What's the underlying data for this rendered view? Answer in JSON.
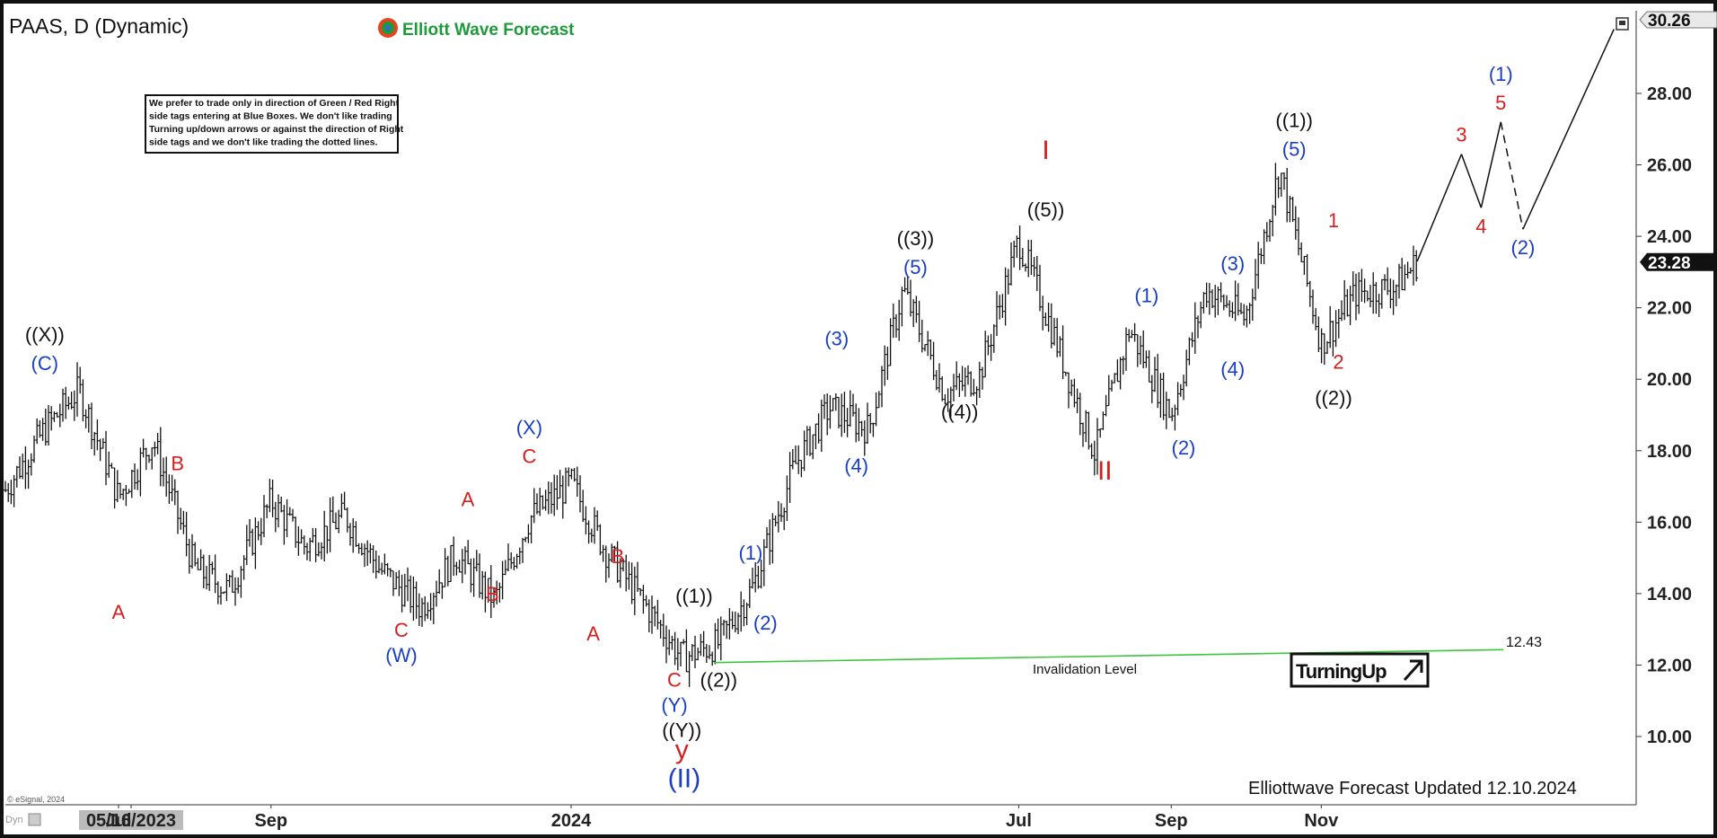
{
  "header": {
    "symbol": "PAAS, D (Dynamic)",
    "brand": "Elliott Wave Forecast",
    "brand_color": "#1e9a3a"
  },
  "disclaimer": "We prefer to trade only in direction of Green / Red Right side tags entering at Blue Boxes. We don't like trading Turning up/down arrows or against the direction of Right side tags and we don't like trading the dotted lines.",
  "footer": {
    "updated": "Elliottwave Forecast Updated 12.10.2024",
    "copyright": "© eSignal, 2024",
    "dyn": "Dyn"
  },
  "invalidation": {
    "label": "Invalidation Level",
    "value_label": "12.43",
    "color": "#3ec43e"
  },
  "tag": {
    "label": "TurningUp",
    "icon": "arrow-up-right-icon"
  },
  "price": {
    "top_label": "30.26",
    "last_label": "23.28"
  },
  "chart_data": {
    "type": "line",
    "title": "PAAS, D (Dynamic)",
    "ylim": [
      9,
      30.6
    ],
    "yticks": [
      "10.00",
      "12.00",
      "14.00",
      "16.00",
      "18.00",
      "20.00",
      "22.00",
      "24.00",
      "26.00",
      "28.00"
    ],
    "xticks": [
      "05/16/2023",
      "Jul",
      "Sep",
      "2024",
      "Mar",
      "May",
      "Jul",
      "Sep",
      "Nov"
    ],
    "xticks_shown": [
      "05/16/2023",
      "Jul",
      "Sep",
      "2024",
      "",
      "",
      "Jul",
      "Sep",
      "Nov"
    ],
    "x": [
      "2023-05-16",
      "2023-06-01",
      "2023-06-15",
      "2023-07-01",
      "2023-07-15",
      "2023-08-01",
      "2023-08-15",
      "2023-09-01",
      "2023-09-15",
      "2023-10-01",
      "2023-10-15",
      "2023-11-01",
      "2023-11-15",
      "2023-12-01",
      "2023-12-15",
      "2024-01-01",
      "2024-01-15",
      "2024-02-01",
      "2024-02-15",
      "2024-03-01",
      "2024-03-15",
      "2024-04-01",
      "2024-04-15",
      "2024-05-01",
      "2024-05-15",
      "2024-06-01",
      "2024-06-15",
      "2024-07-01",
      "2024-07-15",
      "2024-08-01",
      "2024-08-15",
      "2024-09-01",
      "2024-09-15",
      "2024-10-01",
      "2024-10-15",
      "2024-11-01",
      "2024-11-15",
      "2024-12-01",
      "2024-12-10"
    ],
    "y": [
      16.9,
      18.6,
      19.7,
      16.7,
      18.3,
      14.7,
      14.1,
      16.6,
      15.3,
      16.2,
      14.7,
      13.6,
      15.1,
      13.8,
      16.1,
      17.1,
      15.2,
      13.6,
      12.2,
      12.6,
      14.2,
      17.6,
      19.2,
      18.6,
      22.5,
      19.6,
      20.1,
      23.9,
      21.3,
      17.9,
      21.4,
      19.0,
      22.5,
      21.7,
      25.9,
      21.0,
      22.4,
      22.6,
      23.28
    ],
    "projection": {
      "x": [
        "2024-12-10",
        "2024-12-28",
        "2025-01-05",
        "2025-01-13",
        "2025-01-22",
        "2025-02-01",
        "2025-02-28"
      ],
      "y": [
        23.3,
        26.3,
        24.8,
        27.2,
        24.2,
        null,
        29.8
      ],
      "dashed_segments": [
        [
          3,
          4
        ]
      ]
    },
    "wave_labels": [
      {
        "text": "((X))",
        "date": "2023-06-01",
        "price": 19.9,
        "color": "#111",
        "pos": "above2"
      },
      {
        "text": "(C)",
        "date": "2023-06-01",
        "price": 19.9,
        "color": "#1a3fc4",
        "pos": "above"
      },
      {
        "text": "A",
        "date": "2023-07-01",
        "price": 14.0,
        "color": "#d41f1f",
        "pos": "below"
      },
      {
        "text": "B",
        "date": "2023-07-25",
        "price": 17.1,
        "color": "#d41f1f",
        "pos": "above"
      },
      {
        "text": "C",
        "date": "2023-10-24",
        "price": 13.5,
        "color": "#d41f1f",
        "pos": "below"
      },
      {
        "text": "(W)",
        "date": "2023-10-24",
        "price": 13.5,
        "color": "#1a3fc4",
        "pos": "below2"
      },
      {
        "text": "A",
        "date": "2023-11-20",
        "price": 16.1,
        "color": "#d41f1f",
        "pos": "above"
      },
      {
        "text": "B",
        "date": "2023-11-30",
        "price": 14.5,
        "color": "#d41f1f",
        "pos": "below"
      },
      {
        "text": "C",
        "date": "2023-12-15",
        "price": 17.3,
        "color": "#d41f1f",
        "pos": "above"
      },
      {
        "text": "(X)",
        "date": "2023-12-15",
        "price": 17.3,
        "color": "#1a3fc4",
        "pos": "above2"
      },
      {
        "text": "A",
        "date": "2024-01-10",
        "price": 13.4,
        "color": "#d41f1f",
        "pos": "below"
      },
      {
        "text": "B",
        "date": "2024-01-20",
        "price": 14.5,
        "color": "#d41f1f",
        "pos": "above"
      },
      {
        "text": "C",
        "date": "2024-02-12",
        "price": 12.1,
        "color": "#d41f1f",
        "pos": "below"
      },
      {
        "text": "(Y)",
        "date": "2024-02-12",
        "price": 12.1,
        "color": "#1a3fc4",
        "pos": "below2"
      },
      {
        "text": "((Y))",
        "date": "2024-02-15",
        "price": 12.1,
        "color": "#111",
        "pos": "below3"
      },
      {
        "text": "y",
        "date": "2024-02-15",
        "price": 12.1,
        "color": "#d41f1f",
        "pos": "below4"
      },
      {
        "text": "(II)",
        "date": "2024-02-16",
        "price": 12.1,
        "color": "#1a3fc4",
        "pos": "below5"
      },
      {
        "text": "((1))",
        "date": "2024-02-20",
        "price": 13.4,
        "color": "#111",
        "pos": "above"
      },
      {
        "text": "((2))",
        "date": "2024-03-01",
        "price": 12.1,
        "color": "#111",
        "pos": "below"
      },
      {
        "text": "(1)",
        "date": "2024-03-14",
        "price": 14.6,
        "color": "#1a3fc4",
        "pos": "above"
      },
      {
        "text": "(2)",
        "date": "2024-03-20",
        "price": 13.7,
        "color": "#1a3fc4",
        "pos": "below"
      },
      {
        "text": "(3)",
        "date": "2024-04-18",
        "price": 20.6,
        "color": "#1a3fc4",
        "pos": "above"
      },
      {
        "text": "(4)",
        "date": "2024-04-26",
        "price": 18.1,
        "color": "#1a3fc4",
        "pos": "below"
      },
      {
        "text": "(5)",
        "date": "2024-05-20",
        "price": 22.6,
        "color": "#1a3fc4",
        "pos": "above"
      },
      {
        "text": "((3))",
        "date": "2024-05-20",
        "price": 22.6,
        "color": "#111",
        "pos": "above2"
      },
      {
        "text": "((4))",
        "date": "2024-06-07",
        "price": 19.6,
        "color": "#111",
        "pos": "below"
      },
      {
        "text": "((5))",
        "date": "2024-07-12",
        "price": 24.2,
        "color": "#111",
        "pos": "above"
      },
      {
        "text": "I",
        "date": "2024-07-12",
        "price": 24.2,
        "color": "#d41f1f",
        "pos": "above3"
      },
      {
        "text": "II",
        "date": "2024-08-05",
        "price": 17.9,
        "color": "#d41f1f",
        "pos": "below"
      },
      {
        "text": "(1)",
        "date": "2024-08-22",
        "price": 21.8,
        "color": "#1a3fc4",
        "pos": "above"
      },
      {
        "text": "(2)",
        "date": "2024-09-06",
        "price": 18.6,
        "color": "#1a3fc4",
        "pos": "below"
      },
      {
        "text": "(3)",
        "date": "2024-09-26",
        "price": 22.7,
        "color": "#1a3fc4",
        "pos": "above"
      },
      {
        "text": "(4)",
        "date": "2024-09-26",
        "price": 20.8,
        "color": "#1a3fc4",
        "pos": "below"
      },
      {
        "text": "(5)",
        "date": "2024-10-21",
        "price": 25.9,
        "color": "#1a3fc4",
        "pos": "above"
      },
      {
        "text": "((1))",
        "date": "2024-10-21",
        "price": 25.9,
        "color": "#111",
        "pos": "above2"
      },
      {
        "text": "1",
        "date": "2024-11-06",
        "price": 23.9,
        "color": "#d41f1f",
        "pos": "above"
      },
      {
        "text": "2",
        "date": "2024-11-08",
        "price": 21.0,
        "color": "#d41f1f",
        "pos": "below"
      },
      {
        "text": "((2))",
        "date": "2024-11-06",
        "price": 20.7,
        "color": "#111",
        "pos": "below2"
      },
      {
        "text": "3",
        "date": "2024-12-28",
        "price": 26.3,
        "color": "#d41f1f",
        "pos": "above"
      },
      {
        "text": "4",
        "date": "2025-01-05",
        "price": 24.8,
        "color": "#d41f1f",
        "pos": "below"
      },
      {
        "text": "5",
        "date": "2025-01-13",
        "price": 27.2,
        "color": "#d41f1f",
        "pos": "above"
      },
      {
        "text": "(1)",
        "date": "2025-01-13",
        "price": 27.2,
        "color": "#1a3fc4",
        "pos": "above2"
      },
      {
        "text": "(2)",
        "date": "2025-01-22",
        "price": 24.2,
        "color": "#1a3fc4",
        "pos": "below"
      }
    ]
  }
}
